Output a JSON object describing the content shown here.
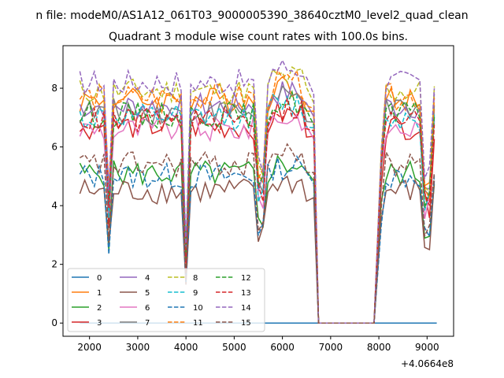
{
  "figure": {
    "suptitle": "n file: modeM0/AS1A12_061T03_9000005390_38640cztM0_level2_quad_clean",
    "offset_text": "+4.0664e8"
  },
  "chart_data": {
    "type": "line",
    "title": "Quadrant 3 module wise count rates with 100.0s bins.",
    "xlabel": "",
    "ylabel": "",
    "xlim": [
      1450,
      9550
    ],
    "ylim": [
      -0.45,
      9.45
    ],
    "x_ticks": [
      2000,
      3000,
      4000,
      5000,
      6000,
      7000,
      8000,
      9000
    ],
    "y_ticks": [
      0,
      2,
      4,
      6,
      8
    ],
    "legend_location": "lower-left",
    "legend_columns": 4,
    "grid": false,
    "active_window": [
      1800,
      6550
    ],
    "gap_window": [
      6750,
      7900
    ],
    "active_window_2": [
      8050,
      9200
    ],
    "series": [
      {
        "name": "0",
        "color": "#1f77b4",
        "dash": "solid",
        "level": 0.0
      },
      {
        "name": "1",
        "color": "#ff7f0e",
        "dash": "solid",
        "level": 7.6
      },
      {
        "name": "2",
        "color": "#2ca02c",
        "dash": "solid",
        "level": 5.1
      },
      {
        "name": "3",
        "color": "#d62728",
        "dash": "solid",
        "level": 6.7
      },
      {
        "name": "4",
        "color": "#9467bd",
        "dash": "solid",
        "level": 7.4
      },
      {
        "name": "5",
        "color": "#8c564b",
        "dash": "solid",
        "level": 4.5
      },
      {
        "name": "6",
        "color": "#e377c2",
        "dash": "solid",
        "level": 6.6
      },
      {
        "name": "7",
        "color": "#7f7f7f",
        "dash": "solid",
        "level": 7.2
      },
      {
        "name": "8",
        "color": "#bcbd22",
        "dash": "dashed",
        "level": 7.9
      },
      {
        "name": "9",
        "color": "#17becf",
        "dash": "dashed",
        "level": 7.0
      },
      {
        "name": "10",
        "color": "#1f77b4",
        "dash": "dashed",
        "level": 5.0
      },
      {
        "name": "11",
        "color": "#ff7f0e",
        "dash": "dashed",
        "level": 7.7
      },
      {
        "name": "12",
        "color": "#2ca02c",
        "dash": "dashed",
        "level": 7.1
      },
      {
        "name": "13",
        "color": "#d62728",
        "dash": "dashed",
        "level": 6.9
      },
      {
        "name": "14",
        "color": "#9467bd",
        "dash": "dashed",
        "level": 8.2
      },
      {
        "name": "15",
        "color": "#8c564b",
        "dash": "dashed",
        "level": 5.4
      }
    ]
  }
}
